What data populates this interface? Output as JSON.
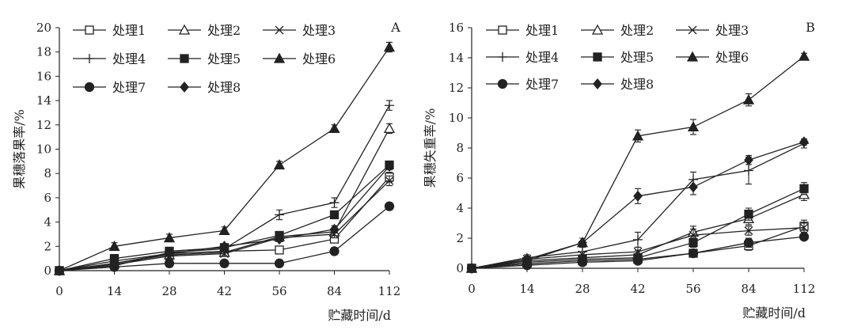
{
  "chart_data": [
    {
      "type": "line",
      "panel_label": "A",
      "xlabel": "贮藏时间/d",
      "ylabel": "果穗落果率/%",
      "categories": [
        "0",
        "14",
        "28",
        "42",
        "56",
        "84",
        "112"
      ],
      "ylim": [
        0,
        20
      ],
      "yticks": [
        0,
        2,
        4,
        6,
        8,
        10,
        12,
        14,
        16,
        18,
        20
      ],
      "grid": false,
      "legend_position": "top-left",
      "series": [
        {
          "name": "处理1",
          "marker": "square-open",
          "values": [
            0,
            0.8,
            1.4,
            1.6,
            1.7,
            2.6,
            7.7
          ],
          "errors": [
            0,
            0.2,
            0.2,
            0.2,
            0.2,
            0.3,
            0.4
          ]
        },
        {
          "name": "处理2",
          "marker": "triangle-open",
          "values": [
            0,
            0.6,
            1.3,
            1.5,
            2.8,
            3.2,
            11.7
          ],
          "errors": [
            0,
            0.1,
            0.2,
            0.2,
            0.3,
            0.3,
            0.4
          ]
        },
        {
          "name": "处理3",
          "marker": "x",
          "values": [
            0,
            0.5,
            1.2,
            1.4,
            2.7,
            3.0,
            7.4
          ],
          "errors": [
            0,
            0.1,
            0.2,
            0.2,
            0.3,
            0.3,
            0.4
          ]
        },
        {
          "name": "处理4",
          "marker": "plus",
          "values": [
            0,
            0.4,
            1.5,
            1.8,
            4.6,
            5.6,
            13.6
          ],
          "errors": [
            0,
            0.1,
            0.2,
            0.2,
            0.4,
            0.4,
            0.4
          ]
        },
        {
          "name": "处理5",
          "marker": "square-filled",
          "values": [
            0,
            1.0,
            1.6,
            1.9,
            2.9,
            4.6,
            8.7
          ],
          "errors": [
            0,
            0.2,
            0.2,
            0.2,
            0.3,
            0.3,
            0.3
          ]
        },
        {
          "name": "处理6",
          "marker": "triangle-filled",
          "values": [
            0,
            2.0,
            2.7,
            3.3,
            8.7,
            11.7,
            18.4
          ],
          "errors": [
            0,
            0.3,
            0.3,
            0.3,
            0.3,
            0.3,
            0.4
          ]
        },
        {
          "name": "处理7",
          "marker": "circle-filled",
          "values": [
            0,
            0.3,
            0.6,
            0.6,
            0.6,
            1.6,
            5.3
          ],
          "errors": [
            0,
            0.1,
            0.3,
            0.3,
            0.3,
            0.3,
            0.3
          ]
        },
        {
          "name": "处理8",
          "marker": "diamond-filled",
          "values": [
            0,
            0.6,
            1.4,
            2.0,
            2.6,
            3.4,
            8.6
          ],
          "errors": [
            0,
            0.1,
            0.2,
            0.2,
            0.2,
            0.3,
            0.3
          ]
        }
      ]
    },
    {
      "type": "line",
      "panel_label": "B",
      "xlabel": "贮藏时间/d",
      "ylabel": "果穗失重率/%",
      "categories": [
        "0",
        "14",
        "28",
        "42",
        "56",
        "84",
        "112"
      ],
      "ylim": [
        0,
        16
      ],
      "yticks": [
        0,
        2,
        4,
        6,
        8,
        10,
        12,
        14,
        16
      ],
      "grid": false,
      "legend_position": "top-left",
      "series": [
        {
          "name": "处理1",
          "marker": "square-open",
          "values": [
            0,
            0.3,
            0.5,
            0.6,
            1.0,
            1.5,
            2.8
          ],
          "errors": [
            0,
            0.1,
            0.1,
            0.1,
            0.2,
            0.3,
            0.4
          ]
        },
        {
          "name": "处理2",
          "marker": "triangle-open",
          "values": [
            0,
            0.5,
            0.7,
            0.9,
            2.4,
            3.3,
            4.9
          ],
          "errors": [
            0,
            0.2,
            0.2,
            0.3,
            0.4,
            0.4,
            0.4
          ]
        },
        {
          "name": "处理3",
          "marker": "x",
          "values": [
            0,
            0.6,
            0.9,
            1.1,
            2.2,
            2.5,
            2.7
          ],
          "errors": [
            0,
            0.2,
            0.2,
            0.3,
            0.4,
            0.3,
            0.3
          ]
        },
        {
          "name": "处理4",
          "marker": "plus",
          "values": [
            0,
            0.7,
            1.1,
            1.9,
            5.9,
            6.5,
            8.3
          ],
          "errors": [
            0,
            0.2,
            0.3,
            0.5,
            0.5,
            0.9,
            0.3
          ]
        },
        {
          "name": "处理5",
          "marker": "square-filled",
          "values": [
            0,
            0.4,
            0.6,
            0.7,
            1.7,
            3.6,
            5.3
          ],
          "errors": [
            0,
            0.1,
            0.2,
            0.2,
            0.3,
            0.4,
            0.4
          ]
        },
        {
          "name": "处理6",
          "marker": "triangle-filled",
          "values": [
            0,
            0.5,
            1.7,
            8.8,
            9.4,
            11.2,
            14.1
          ],
          "errors": [
            0,
            0.2,
            0.3,
            0.4,
            0.5,
            0.4,
            0.2
          ]
        },
        {
          "name": "处理7",
          "marker": "circle-filled",
          "values": [
            0,
            0.2,
            0.4,
            0.5,
            1.0,
            1.7,
            2.1
          ],
          "errors": [
            0,
            0.1,
            0.1,
            0.1,
            0.2,
            0.3,
            0.2
          ]
        },
        {
          "name": "处理8",
          "marker": "diamond-filled",
          "values": [
            0,
            0.6,
            1.7,
            4.8,
            5.4,
            7.2,
            8.4
          ],
          "errors": [
            0,
            0.2,
            0.3,
            0.5,
            0.5,
            0.3,
            0.2
          ]
        }
      ]
    }
  ]
}
